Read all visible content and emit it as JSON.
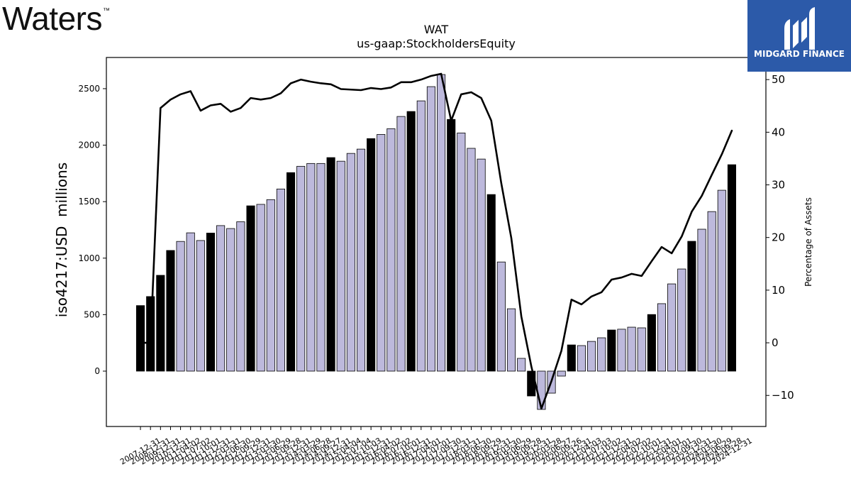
{
  "logos": {
    "brand": "Waters",
    "brand_mark": "™",
    "publisher": "MIDGARD FINANCE"
  },
  "colors": {
    "publisher_bg": "#2c5aa9",
    "bar_dark": "#000000",
    "bar_light": "#bdb9dc",
    "line": "#000000"
  },
  "chart_data": {
    "type": "bar",
    "title": "WAT",
    "subtitle": "us-gaap:StockholdersEquity",
    "ylabel": "iso4217:USD  millions",
    "y2label": "Percentage of Assets",
    "ylim": [
      -490,
      2776
    ],
    "y2lim": [
      -15.9,
      54.2
    ],
    "yticks": [
      0,
      500,
      1000,
      1500,
      2000,
      2500
    ],
    "ytick_labels": [
      "0",
      "500",
      "1000",
      "1500",
      "2000",
      "2500"
    ],
    "y2ticks": [
      -10,
      0,
      10,
      20,
      30,
      40,
      50
    ],
    "y2tick_labels": [
      "−10",
      "0",
      "10",
      "20",
      "30",
      "40",
      "50"
    ],
    "grid": false,
    "categories": [
      "2007-12-31",
      "2008-12-31",
      "2009-12-31",
      "2010-12-31",
      "2011-04-02",
      "2011-07-02",
      "2011-10-01",
      "2011-12-31",
      "2012-03-31",
      "2012-06-30",
      "2012-09-29",
      "2012-12-31",
      "2013-03-30",
      "2013-06-29",
      "2013-09-28",
      "2013-12-31",
      "2014-03-29",
      "2014-06-28",
      "2014-09-27",
      "2014-12-31",
      "2015-04-04",
      "2015-07-04",
      "2015-10-03",
      "2015-12-31",
      "2016-04-02",
      "2016-07-02",
      "2016-10-01",
      "2016-12-31",
      "2017-04-01",
      "2017-07-01",
      "2017-09-30",
      "2017-12-31",
      "2018-03-31",
      "2018-06-30",
      "2018-09-29",
      "2018-12-31",
      "2019-03-30",
      "2019-06-29",
      "2019-09-28",
      "2019-12-31",
      "2020-03-28",
      "2020-06-27",
      "2020-09-26",
      "2020-12-31",
      "2021-04-03",
      "2021-07-03",
      "2021-10-02",
      "2021-12-31",
      "2022-04-02",
      "2022-07-02",
      "2022-10-01",
      "2022-12-31",
      "2023-04-01",
      "2023-07-01",
      "2023-09-30",
      "2023-12-31",
      "2024-03-30",
      "2024-06-29",
      "2024-09-28",
      "2024-12-31"
    ],
    "series": [
      {
        "type": "bar",
        "axis": "left",
        "values": [
          580,
          660,
          848,
          1068,
          1148,
          1224,
          1156,
          1222,
          1288,
          1262,
          1322,
          1463,
          1476,
          1518,
          1612,
          1757,
          1813,
          1838,
          1838,
          1890,
          1858,
          1927,
          1965,
          2058,
          2095,
          2146,
          2254,
          2298,
          2392,
          2518,
          2625,
          2228,
          2108,
          1972,
          1877,
          1563,
          966,
          552,
          113,
          -220,
          -339,
          -195,
          -44,
          232,
          226,
          263,
          295,
          364,
          371,
          389,
          383,
          501,
          597,
          772,
          904,
          1149,
          1256,
          1412,
          1601,
          1827
        ],
        "colors": [
          "#000000",
          "#000000",
          "#000000",
          "#000000",
          "#bdb9dc",
          "#bdb9dc",
          "#bdb9dc",
          "#000000",
          "#bdb9dc",
          "#bdb9dc",
          "#bdb9dc",
          "#000000",
          "#bdb9dc",
          "#bdb9dc",
          "#bdb9dc",
          "#000000",
          "#bdb9dc",
          "#bdb9dc",
          "#bdb9dc",
          "#000000",
          "#bdb9dc",
          "#bdb9dc",
          "#bdb9dc",
          "#000000",
          "#bdb9dc",
          "#bdb9dc",
          "#bdb9dc",
          "#000000",
          "#bdb9dc",
          "#bdb9dc",
          "#bdb9dc",
          "#000000",
          "#bdb9dc",
          "#bdb9dc",
          "#bdb9dc",
          "#000000",
          "#bdb9dc",
          "#bdb9dc",
          "#bdb9dc",
          "#000000",
          "#bdb9dc",
          "#bdb9dc",
          "#bdb9dc",
          "#000000",
          "#bdb9dc",
          "#bdb9dc",
          "#bdb9dc",
          "#000000",
          "#bdb9dc",
          "#bdb9dc",
          "#bdb9dc",
          "#000000",
          "#bdb9dc",
          "#bdb9dc",
          "#bdb9dc",
          "#000000",
          "#bdb9dc",
          "#bdb9dc",
          "#bdb9dc",
          "#000000"
        ]
      },
      {
        "type": "line",
        "axis": "right",
        "values": [
          0,
          0,
          44.6,
          46.2,
          47.2,
          47.8,
          44.1,
          45.1,
          45.4,
          43.9,
          44.6,
          46.5,
          46.2,
          46.5,
          47.4,
          49.3,
          50.0,
          49.6,
          49.3,
          49.1,
          48.2,
          48.1,
          48.0,
          48.4,
          48.2,
          48.5,
          49.5,
          49.5,
          50.0,
          50.7,
          51.1,
          42.2,
          47.2,
          47.6,
          46.5,
          42.2,
          30.3,
          19.9,
          5.0,
          -4.5,
          -12.5,
          -7.3,
          -1.5,
          8.2,
          7.3,
          8.8,
          9.6,
          12.0,
          12.4,
          13.1,
          12.7,
          15.5,
          18.2,
          17.0,
          20.2,
          24.9,
          27.9,
          31.9,
          35.8,
          40.3
        ]
      }
    ]
  }
}
